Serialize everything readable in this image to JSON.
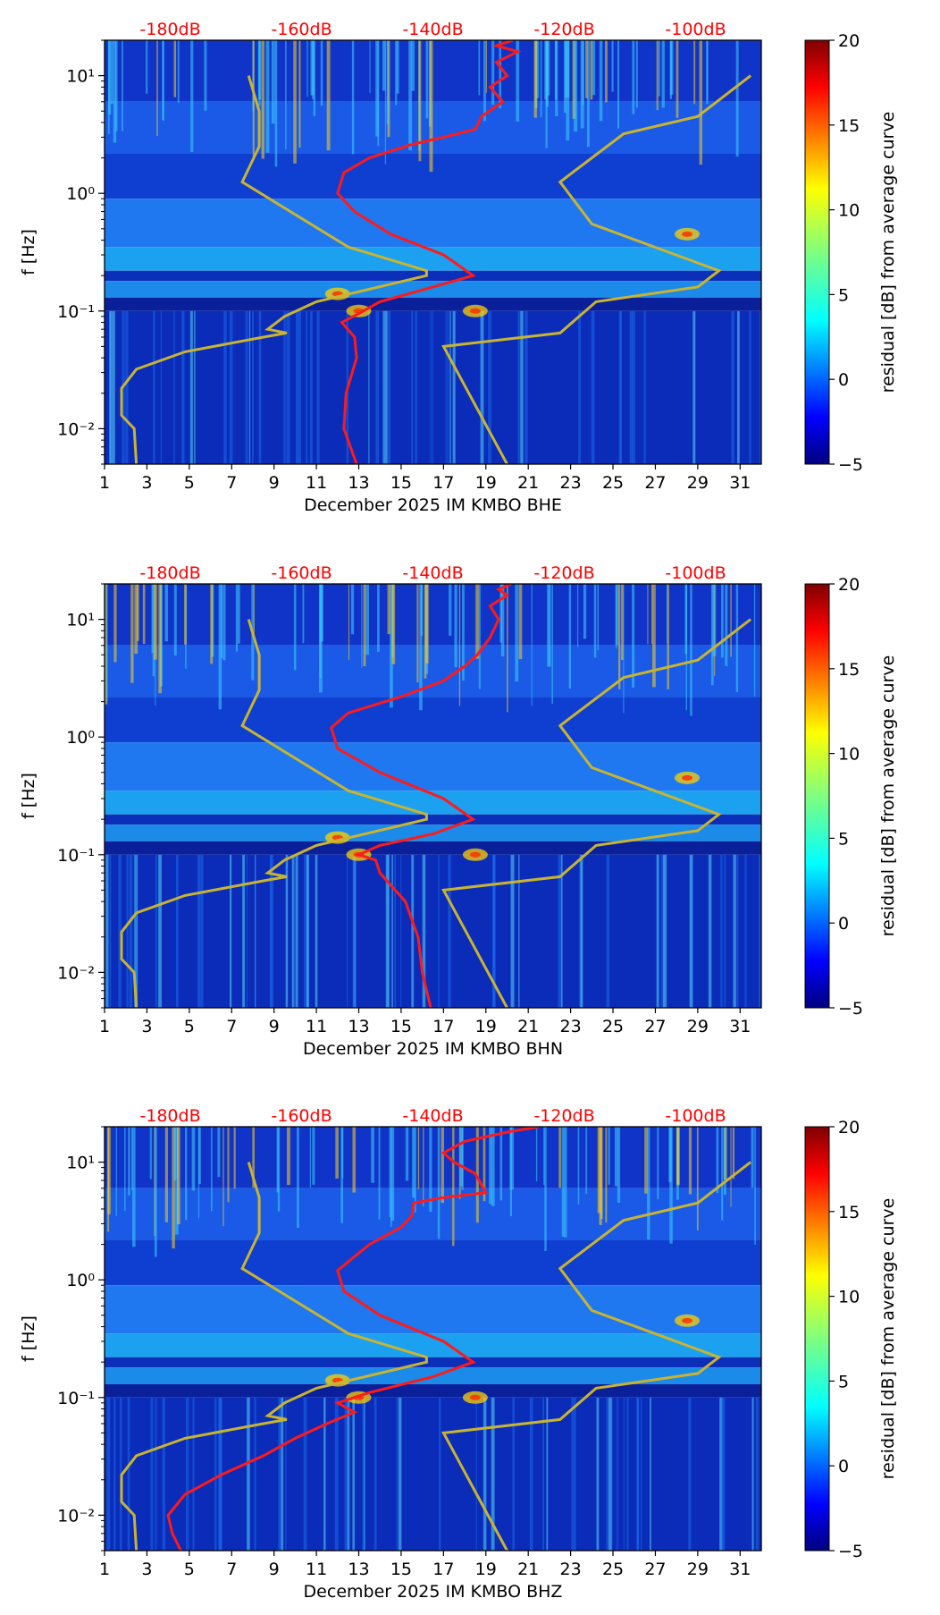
{
  "colors": {
    "noise_model": "#c8b432",
    "median_curve": "#ff1a1a",
    "db_labels": "#ff0000",
    "colormap": [
      "#00007f",
      "#0000ff",
      "#007fff",
      "#00ffff",
      "#7fff7f",
      "#ffff00",
      "#ff7f00",
      "#ff0000",
      "#7f0000"
    ]
  },
  "chart_data": [
    {
      "type": "heatmap",
      "xlabel": "December 2025 IM KMBO  BHE",
      "ylabel": "f [Hz]",
      "colorbar_label": "residual [dB] from average curve",
      "x_ticks": [
        1,
        3,
        5,
        7,
        9,
        11,
        13,
        15,
        17,
        19,
        21,
        23,
        25,
        27,
        29,
        31
      ],
      "xlim": [
        1,
        32
      ],
      "ylim": [
        0.005,
        20
      ],
      "y_scale": "log",
      "y_ticks": [
        {
          "value": 0.01,
          "label": "10⁻²"
        },
        {
          "value": 0.1,
          "label": "10⁻¹"
        },
        {
          "value": 1,
          "label": "10⁰"
        },
        {
          "value": 10,
          "label": "10¹"
        }
      ],
      "color_range": [
        -5,
        20
      ],
      "colorbar_ticks": [
        "−5",
        "0",
        "5",
        "10",
        "15",
        "20"
      ],
      "db_axis": {
        "labels": [
          "-180dB",
          "-160dB",
          "-140dB",
          "-120dB",
          "-100dB"
        ],
        "day_positions": [
          4.1,
          10.3,
          16.5,
          22.7,
          28.9
        ]
      },
      "noise_model_curve": [
        [
          20.0,
          0.005
        ],
        [
          17.0,
          0.05
        ],
        [
          22.5,
          0.065
        ],
        [
          24.2,
          0.12
        ],
        [
          29.0,
          0.16
        ],
        [
          30.0,
          0.22
        ],
        [
          24.0,
          0.55
        ],
        [
          22.5,
          1.25
        ],
        [
          25.5,
          3.2
        ],
        [
          29.0,
          4.5
        ],
        [
          31.5,
          10
        ]
      ],
      "noise_model_low_curve": [
        [
          7.8,
          10
        ],
        [
          8.3,
          5.0
        ],
        [
          8.3,
          2.5
        ],
        [
          7.5,
          1.25
        ],
        [
          9.5,
          0.75
        ],
        [
          12.5,
          0.35
        ],
        [
          16.2,
          0.22
        ],
        [
          16.2,
          0.2
        ],
        [
          11.0,
          0.12
        ],
        [
          9.5,
          0.09
        ],
        [
          8.7,
          0.07
        ],
        [
          9.6,
          0.065
        ],
        [
          8.5,
          0.06
        ],
        [
          4.8,
          0.045
        ],
        [
          2.5,
          0.032
        ],
        [
          1.8,
          0.022
        ],
        [
          1.8,
          0.013
        ],
        [
          2.4,
          0.01
        ],
        [
          2.5,
          0.005
        ]
      ],
      "median_curve": [
        [
          12.9,
          0.005
        ],
        [
          12.3,
          0.01
        ],
        [
          12.4,
          0.02
        ],
        [
          12.9,
          0.04
        ],
        [
          12.8,
          0.06
        ],
        [
          12.2,
          0.08
        ],
        [
          13.0,
          0.095
        ],
        [
          14.0,
          0.12
        ],
        [
          16.5,
          0.16
        ],
        [
          18.4,
          0.2
        ],
        [
          17.0,
          0.3
        ],
        [
          14.5,
          0.45
        ],
        [
          12.8,
          0.7
        ],
        [
          12.0,
          1.0
        ],
        [
          12.3,
          1.5
        ],
        [
          13.5,
          2.0
        ],
        [
          15.5,
          2.6
        ],
        [
          17.0,
          3.0
        ],
        [
          18.5,
          3.5
        ],
        [
          18.8,
          4.5
        ],
        [
          19.8,
          6.0
        ],
        [
          19.2,
          8.0
        ],
        [
          20.0,
          10.0
        ],
        [
          19.5,
          13.0
        ],
        [
          20.5,
          16.0
        ],
        [
          19.5,
          18.0
        ],
        [
          20.3,
          20.0
        ]
      ]
    },
    {
      "type": "heatmap",
      "xlabel": "December 2025 IM KMBO  BHN",
      "ylabel": "f [Hz]",
      "colorbar_label": "residual [dB] from average curve",
      "x_ticks": [
        1,
        3,
        5,
        7,
        9,
        11,
        13,
        15,
        17,
        19,
        21,
        23,
        25,
        27,
        29,
        31
      ],
      "xlim": [
        1,
        32
      ],
      "ylim": [
        0.005,
        20
      ],
      "y_scale": "log",
      "y_ticks": [
        {
          "value": 0.01,
          "label": "10⁻²"
        },
        {
          "value": 0.1,
          "label": "10⁻¹"
        },
        {
          "value": 1,
          "label": "10⁰"
        },
        {
          "value": 10,
          "label": "10¹"
        }
      ],
      "color_range": [
        -5,
        20
      ],
      "colorbar_ticks": [
        "−5",
        "0",
        "5",
        "10",
        "15",
        "20"
      ],
      "db_axis": {
        "labels": [
          "-180dB",
          "-160dB",
          "-140dB",
          "-120dB",
          "-100dB"
        ],
        "day_positions": [
          4.1,
          10.3,
          16.5,
          22.7,
          28.9
        ]
      },
      "noise_model_curve": [
        [
          20.0,
          0.005
        ],
        [
          17.0,
          0.05
        ],
        [
          22.5,
          0.065
        ],
        [
          24.2,
          0.12
        ],
        [
          29.0,
          0.16
        ],
        [
          30.0,
          0.22
        ],
        [
          24.0,
          0.55
        ],
        [
          22.5,
          1.25
        ],
        [
          25.5,
          3.2
        ],
        [
          29.0,
          4.5
        ],
        [
          31.5,
          10
        ]
      ],
      "noise_model_low_curve": [
        [
          7.8,
          10
        ],
        [
          8.3,
          5.0
        ],
        [
          8.3,
          2.5
        ],
        [
          7.5,
          1.25
        ],
        [
          9.5,
          0.75
        ],
        [
          12.5,
          0.35
        ],
        [
          16.2,
          0.22
        ],
        [
          16.2,
          0.2
        ],
        [
          11.0,
          0.12
        ],
        [
          9.5,
          0.09
        ],
        [
          8.7,
          0.07
        ],
        [
          9.6,
          0.065
        ],
        [
          8.5,
          0.06
        ],
        [
          4.8,
          0.045
        ],
        [
          2.5,
          0.032
        ],
        [
          1.8,
          0.022
        ],
        [
          1.8,
          0.013
        ],
        [
          2.4,
          0.01
        ],
        [
          2.5,
          0.005
        ]
      ],
      "median_curve": [
        [
          16.4,
          0.005
        ],
        [
          16.0,
          0.01
        ],
        [
          15.8,
          0.02
        ],
        [
          15.2,
          0.04
        ],
        [
          14.0,
          0.07
        ],
        [
          13.8,
          0.09
        ],
        [
          13.0,
          0.1
        ],
        [
          14.0,
          0.12
        ],
        [
          16.5,
          0.15
        ],
        [
          18.4,
          0.2
        ],
        [
          17.0,
          0.3
        ],
        [
          14.0,
          0.5
        ],
        [
          12.0,
          0.8
        ],
        [
          11.7,
          1.2
        ],
        [
          12.5,
          1.6
        ],
        [
          15.0,
          2.2
        ],
        [
          17.0,
          3.0
        ],
        [
          18.0,
          4.0
        ],
        [
          18.6,
          5.0
        ],
        [
          19.2,
          7.0
        ],
        [
          19.6,
          10.0
        ],
        [
          19.2,
          13.0
        ],
        [
          20.0,
          16.0
        ],
        [
          19.6,
          18.0
        ],
        [
          20.2,
          20.0
        ]
      ]
    },
    {
      "type": "heatmap",
      "xlabel": "December 2025 IM KMBO  BHZ",
      "ylabel": "f [Hz]",
      "colorbar_label": "residual [dB] from average curve",
      "x_ticks": [
        1,
        3,
        5,
        7,
        9,
        11,
        13,
        15,
        17,
        19,
        21,
        23,
        25,
        27,
        29,
        31
      ],
      "xlim": [
        1,
        32
      ],
      "ylim": [
        0.005,
        20
      ],
      "y_scale": "log",
      "y_ticks": [
        {
          "value": 0.01,
          "label": "10⁻²"
        },
        {
          "value": 0.1,
          "label": "10⁻¹"
        },
        {
          "value": 1,
          "label": "10⁰"
        },
        {
          "value": 10,
          "label": "10¹"
        }
      ],
      "color_range": [
        -5,
        20
      ],
      "colorbar_ticks": [
        "−5",
        "0",
        "5",
        "10",
        "15",
        "20"
      ],
      "db_axis": {
        "labels": [
          "-180dB",
          "-160dB",
          "-140dB",
          "-120dB",
          "-100dB"
        ],
        "day_positions": [
          4.1,
          10.3,
          16.5,
          22.7,
          28.9
        ]
      },
      "noise_model_curve": [
        [
          20.0,
          0.005
        ],
        [
          17.0,
          0.05
        ],
        [
          22.5,
          0.065
        ],
        [
          24.2,
          0.12
        ],
        [
          29.0,
          0.16
        ],
        [
          30.0,
          0.22
        ],
        [
          24.0,
          0.55
        ],
        [
          22.5,
          1.25
        ],
        [
          25.5,
          3.2
        ],
        [
          29.0,
          4.5
        ],
        [
          31.5,
          10
        ]
      ],
      "noise_model_low_curve": [
        [
          7.8,
          10
        ],
        [
          8.3,
          5.0
        ],
        [
          8.3,
          2.5
        ],
        [
          7.5,
          1.25
        ],
        [
          9.5,
          0.75
        ],
        [
          12.5,
          0.35
        ],
        [
          16.2,
          0.22
        ],
        [
          16.2,
          0.2
        ],
        [
          11.0,
          0.12
        ],
        [
          9.5,
          0.09
        ],
        [
          8.7,
          0.07
        ],
        [
          9.6,
          0.065
        ],
        [
          8.5,
          0.06
        ],
        [
          4.8,
          0.045
        ],
        [
          2.5,
          0.032
        ],
        [
          1.8,
          0.022
        ],
        [
          1.8,
          0.013
        ],
        [
          2.4,
          0.01
        ],
        [
          2.5,
          0.005
        ]
      ],
      "median_curve": [
        [
          4.6,
          0.005
        ],
        [
          4.2,
          0.007
        ],
        [
          4.0,
          0.01
        ],
        [
          4.8,
          0.015
        ],
        [
          6.5,
          0.022
        ],
        [
          8.5,
          0.032
        ],
        [
          10.0,
          0.045
        ],
        [
          11.5,
          0.06
        ],
        [
          12.8,
          0.075
        ],
        [
          12.0,
          0.09
        ],
        [
          13.5,
          0.11
        ],
        [
          16.5,
          0.15
        ],
        [
          18.4,
          0.2
        ],
        [
          17.0,
          0.3
        ],
        [
          14.0,
          0.5
        ],
        [
          12.3,
          0.8
        ],
        [
          12.0,
          1.2
        ],
        [
          13.5,
          2.0
        ],
        [
          15.0,
          2.8
        ],
        [
          15.5,
          3.5
        ],
        [
          15.6,
          4.5
        ],
        [
          17.0,
          5.0
        ],
        [
          19.0,
          5.5
        ],
        [
          18.5,
          8.0
        ],
        [
          17.5,
          10.0
        ],
        [
          17.0,
          12.0
        ],
        [
          18.0,
          15.0
        ],
        [
          20.0,
          18.0
        ],
        [
          21.5,
          20.0
        ]
      ]
    }
  ]
}
